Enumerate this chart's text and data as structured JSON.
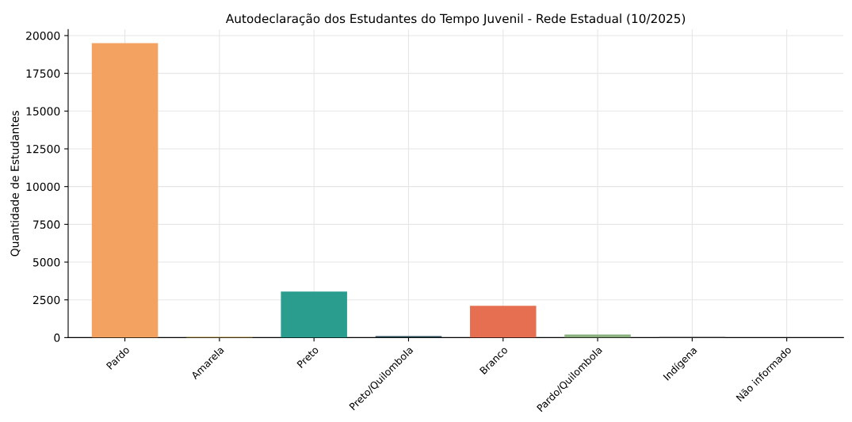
{
  "chart_data": {
    "type": "bar",
    "title": "Autodeclaração dos Estudantes do Tempo Juvenil - Rede Estadual (10/2025)",
    "ylabel": "Quantidade de Estudantes",
    "categories": [
      "Pardo",
      "Amarela",
      "Preto",
      "Preto/Quilombola",
      "Branco",
      "Pardo/Quilombola",
      "Indígena",
      "Não informado"
    ],
    "values": [
      19500,
      50,
      3050,
      100,
      2100,
      200,
      50,
      null
    ],
    "colors": [
      "#f4a261",
      "#e9c46a",
      "#2a9d8f",
      "#264653",
      "#e76f51",
      "#8ab17d",
      "#6d6d6d",
      "#b5838d"
    ],
    "ylim": [
      0,
      20400
    ],
    "yticks": [
      0,
      2500,
      5000,
      7500,
      10000,
      12500,
      15000,
      17500,
      20000
    ],
    "grid": true
  }
}
